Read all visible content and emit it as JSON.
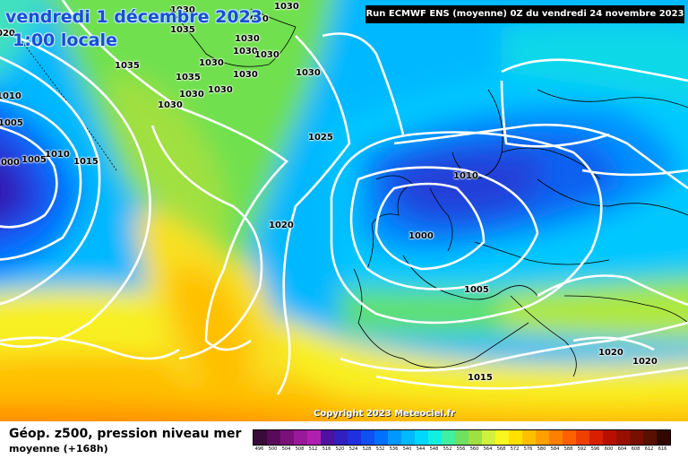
{
  "header": {
    "date": "vendredi 1 décembre 2023",
    "time": "1:00 locale",
    "run": "Run ECMWF ENS (moyenne) 0Z du vendredi 24 novembre 2023"
  },
  "copyright": "Copyright 2023 Meteociel.fr",
  "footer": {
    "line1": "Géop. z500, pression niveau mer",
    "line2": "moyenne   (+168h)"
  },
  "isobar_labels": [
    "1030",
    "1030",
    "1030",
    "1035",
    "1030",
    "1035",
    "1030",
    "1035",
    "1030",
    "1030",
    "1030",
    "1030",
    "1030",
    "1030",
    "1030",
    "1025",
    "1020",
    "1010",
    "1000",
    "1005",
    "1020",
    "1020",
    "1015",
    "1015",
    "1010",
    "1005",
    "1000",
    "1010",
    "1005",
    "020"
  ],
  "scale": {
    "labels": [
      "496",
      "500",
      "504",
      "508",
      "512",
      "516",
      "520",
      "524",
      "528",
      "532",
      "536",
      "540",
      "544",
      "548",
      "552",
      "556",
      "560",
      "564",
      "568",
      "572",
      "576",
      "580",
      "584",
      "588",
      "592",
      "596",
      "600",
      "604",
      "608",
      "612",
      "616"
    ],
    "colors": [
      "#3a0a3a",
      "#5a0a5a",
      "#7a107a",
      "#9a189a",
      "#b020b0",
      "#5010a0",
      "#3020c0",
      "#2030e0",
      "#1050f0",
      "#0070ff",
      "#0098ff",
      "#00b8ff",
      "#00d8ff",
      "#10f0e0",
      "#40f0a0",
      "#70e060",
      "#a0e040",
      "#d0f040",
      "#f8f820",
      "#ffe000",
      "#ffc000",
      "#ffa000",
      "#ff8000",
      "#ff6000",
      "#f04000",
      "#d82000",
      "#b81000",
      "#981000",
      "#781000",
      "#581000",
      "#300800"
    ]
  }
}
